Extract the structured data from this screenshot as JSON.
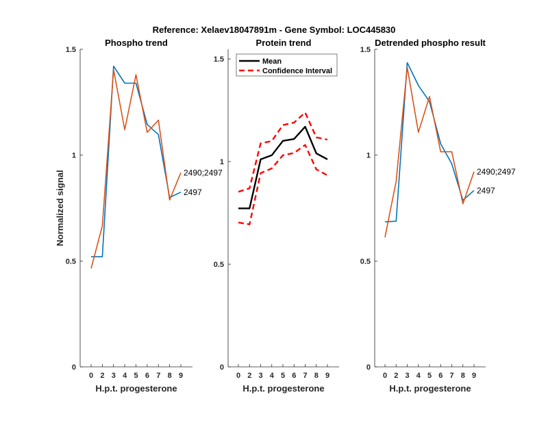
{
  "chart_data": {
    "suptitle": "Reference:  Xelaev18047891m - Gene Symbol:  LOC445830",
    "colors": {
      "blue": "#0072BD",
      "orange": "#D95319",
      "mean": "#000000",
      "ci": "#FF0000",
      "axis": "#262626"
    },
    "panels": [
      {
        "type": "line",
        "title": "Phospho trend",
        "xlabel": "H.p.t. progesterone",
        "ylabel": "Normalized signal",
        "categories": [
          "0",
          "2",
          "3",
          "4",
          "5",
          "6",
          "7",
          "8",
          "9"
        ],
        "ylim": [
          0,
          1.5
        ],
        "yticks": [
          0,
          0.5,
          1,
          1.5
        ],
        "ytick_labels": [
          "0",
          "0.5",
          "1",
          "1.5"
        ],
        "series": [
          {
            "name": "2497",
            "color": "blue",
            "values": [
              0.52,
              0.52,
              1.42,
              1.34,
              1.34,
              1.145,
              1.097,
              0.8,
              0.825
            ]
          },
          {
            "name": "2490;2497",
            "color": "orange",
            "values": [
              0.465,
              0.666,
              1.404,
              1.12,
              1.38,
              1.108,
              1.165,
              0.788,
              0.917
            ]
          }
        ]
      },
      {
        "type": "line",
        "title": "Protein trend",
        "xlabel": "H.p.t. progesterone",
        "ylabel": "",
        "categories": [
          "0",
          "2",
          "3",
          "4",
          "5",
          "6",
          "7",
          "8",
          "9"
        ],
        "ylim": [
          0,
          1.547
        ],
        "yticks": [
          0,
          0.5,
          1,
          1.5
        ],
        "ytick_labels": [
          "0",
          "0.5",
          "1",
          "1.5"
        ],
        "legend": {
          "placement": "top-left",
          "entries": [
            "Mean",
            "Confidence Interval"
          ]
        },
        "series": [
          {
            "name": "Mean",
            "color": "mean",
            "style": "solid",
            "values": [
              0.772,
              0.772,
              1.011,
              1.031,
              1.101,
              1.11,
              1.17,
              1.04,
              1.011
            ]
          },
          {
            "name": "Confidence Interval (upper)",
            "color": "ci",
            "style": "dashed",
            "values": [
              0.853,
              0.87,
              1.089,
              1.1,
              1.178,
              1.19,
              1.239,
              1.118,
              1.107
            ]
          },
          {
            "name": "Confidence Interval (lower)",
            "color": "ci",
            "style": "dashed",
            "values": [
              0.703,
              0.694,
              0.944,
              0.967,
              1.031,
              1.042,
              1.081,
              0.962,
              0.933
            ]
          }
        ]
      },
      {
        "type": "line",
        "title": "Detrended phospho result",
        "xlabel": "H.p.t. progesterone",
        "ylabel": "",
        "categories": [
          "0",
          "2",
          "3",
          "4",
          "5",
          "6",
          "7",
          "8",
          "9"
        ],
        "ylim": [
          0,
          1.5
        ],
        "yticks": [
          0,
          0.5,
          1,
          1.5
        ],
        "ytick_labels": [
          "0",
          "0.5",
          "1",
          "1.5"
        ],
        "series": [
          {
            "name": "2497",
            "color": "blue",
            "values": [
              0.685,
              0.688,
              1.437,
              1.329,
              1.253,
              1.054,
              0.959,
              0.787,
              0.833
            ]
          },
          {
            "name": "2490;2497",
            "color": "orange",
            "values": [
              0.612,
              0.876,
              1.415,
              1.108,
              1.277,
              1.016,
              1.016,
              0.77,
              0.922
            ]
          }
        ]
      }
    ]
  }
}
